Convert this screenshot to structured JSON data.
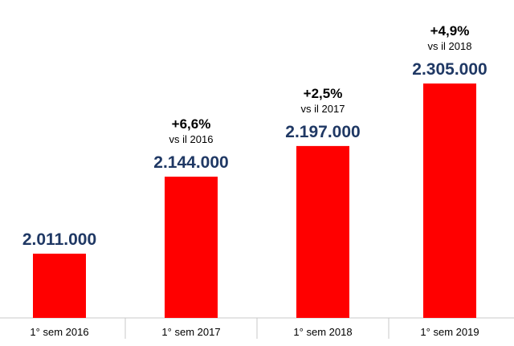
{
  "chart_data": {
    "type": "bar",
    "categories": [
      "1° sem 2016",
      "1° sem 2017",
      "1° sem 2018",
      "1° sem 2019"
    ],
    "values": [
      2011000,
      2144000,
      2197000,
      2305000
    ],
    "value_labels": [
      "2.011.000",
      "2.144.000",
      "2.197.000",
      "2.305.000"
    ],
    "annotations": [
      null,
      {
        "change": "+6,6%",
        "compare": "vs il 2016"
      },
      {
        "change": "+2,5%",
        "compare": "vs il 2017"
      },
      {
        "change": "+4,9%",
        "compare": "vs il 2018"
      }
    ],
    "title": "",
    "xlabel": "",
    "ylabel": "",
    "ylim": [
      1900000,
      2330000
    ],
    "grid": false,
    "legend": "none",
    "colors": {
      "bar": "#ff0000",
      "value_label": "#1f3864",
      "axis": "#c8c8c8"
    }
  }
}
